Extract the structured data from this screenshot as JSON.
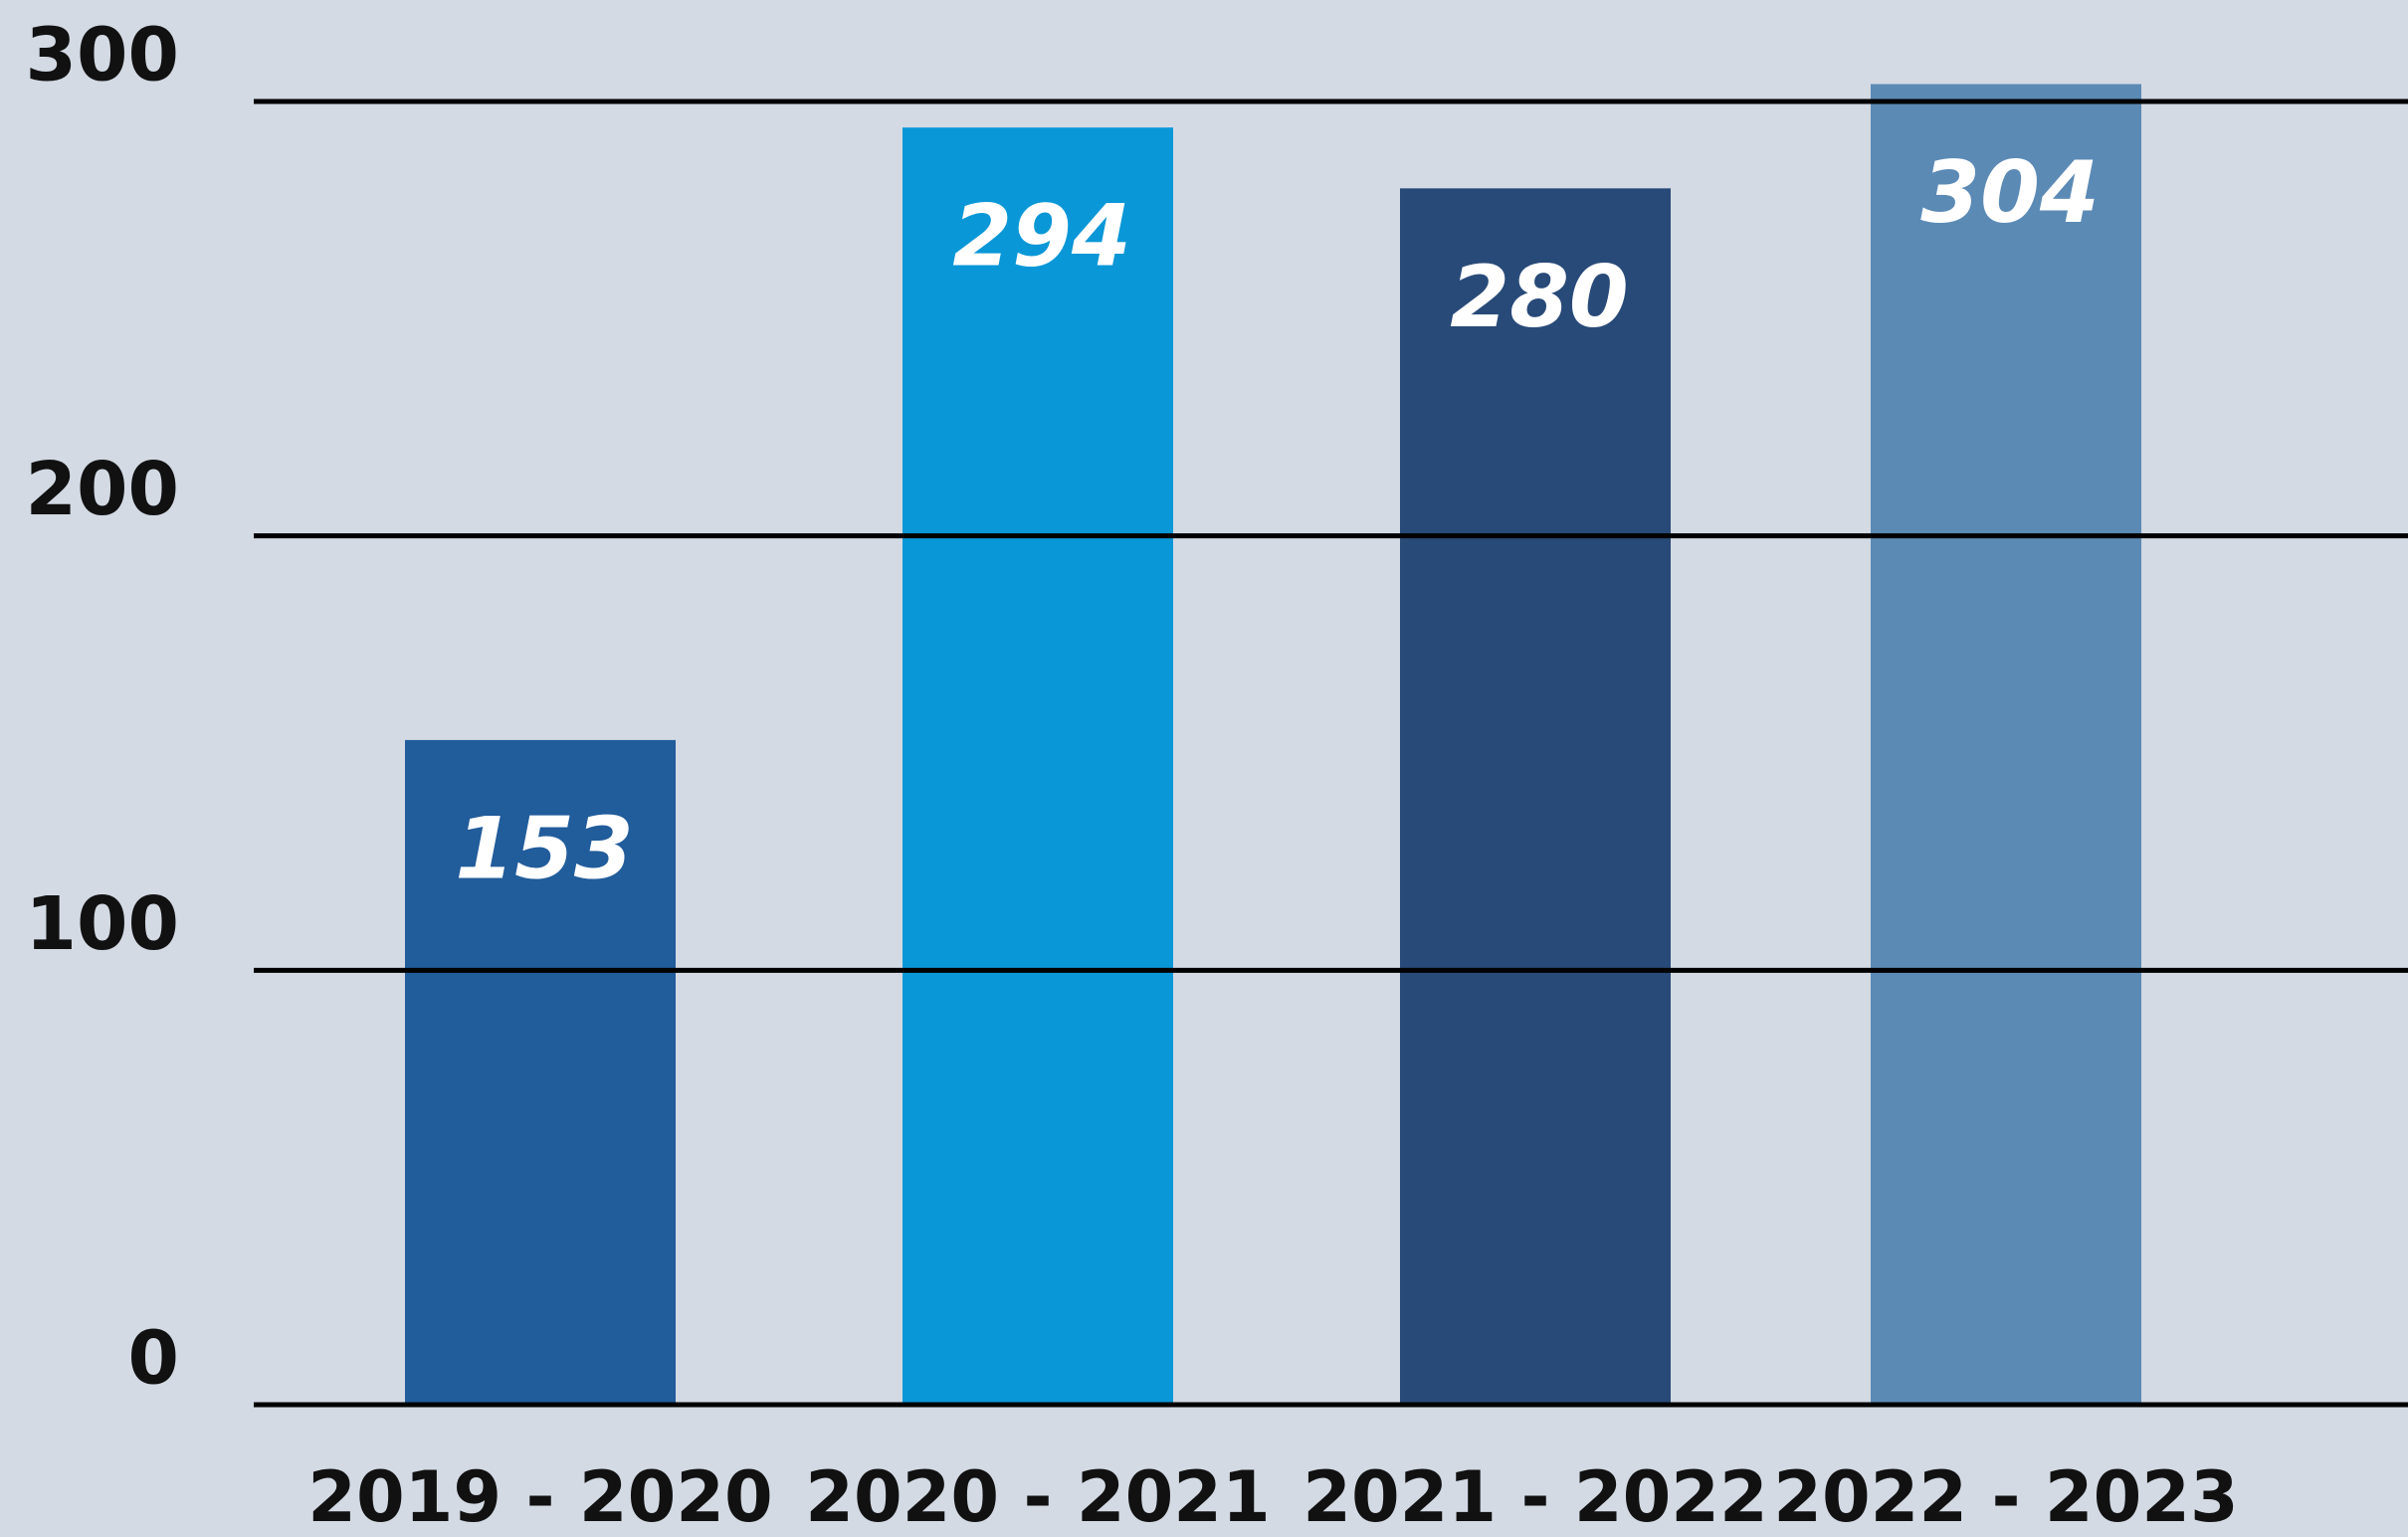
{
  "chart_data": {
    "type": "bar",
    "categories": [
      "2019 - 2020",
      "2020 - 2021",
      "2021 - 2022",
      "2022 - 2023"
    ],
    "values": [
      153,
      294,
      280,
      304
    ],
    "colors": [
      "#215c9b",
      "#0a97d7",
      "#284a78",
      "#5b8ab5"
    ],
    "ylim": [
      0,
      300
    ],
    "yticks": [
      0,
      100,
      200,
      300
    ],
    "grid": true
  }
}
